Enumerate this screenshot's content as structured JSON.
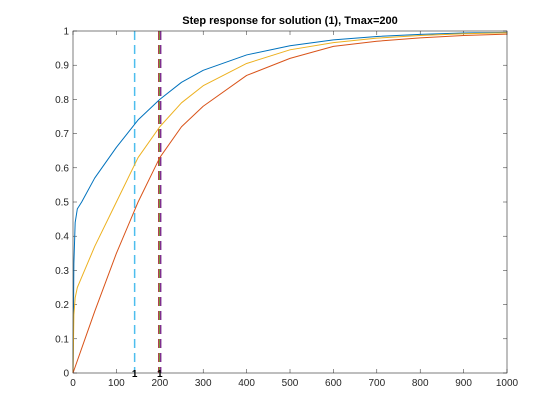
{
  "chart_data": {
    "type": "line",
    "title": "Step response for solution (1), Tmax=200",
    "xlabel": "",
    "ylabel": "",
    "xlim": [
      0,
      1000
    ],
    "ylim": [
      0,
      1
    ],
    "grid": false,
    "legend": "none",
    "xticks": [
      0,
      100,
      200,
      300,
      400,
      500,
      600,
      700,
      800,
      900,
      1000
    ],
    "yticks": [
      0,
      0.1,
      0.2,
      0.3,
      0.4,
      0.5,
      0.6,
      0.7,
      0.8,
      0.9,
      1
    ],
    "series": [
      {
        "color": "#0072BD",
        "x": [
          0,
          2,
          5,
          10,
          20,
          50,
          100,
          150,
          200,
          250,
          300,
          400,
          500,
          600,
          700,
          800,
          900,
          1000
        ],
        "y": [
          0,
          0.32,
          0.44,
          0.48,
          0.5,
          0.57,
          0.66,
          0.74,
          0.8,
          0.85,
          0.885,
          0.93,
          0.957,
          0.974,
          0.984,
          0.99,
          0.994,
          0.996
        ]
      },
      {
        "color": "#EDB120",
        "x": [
          0,
          2,
          5,
          10,
          20,
          50,
          100,
          150,
          200,
          250,
          300,
          400,
          500,
          600,
          700,
          800,
          900,
          1000
        ],
        "y": [
          0,
          0.17,
          0.22,
          0.25,
          0.28,
          0.37,
          0.5,
          0.63,
          0.72,
          0.79,
          0.84,
          0.905,
          0.945,
          0.966,
          0.979,
          0.987,
          0.992,
          0.995
        ]
      },
      {
        "color": "#D95319",
        "x": [
          0,
          25,
          50,
          100,
          150,
          200,
          250,
          300,
          400,
          500,
          600,
          700,
          800,
          900,
          1000
        ],
        "y": [
          0,
          0.09,
          0.18,
          0.35,
          0.5,
          0.63,
          0.72,
          0.78,
          0.87,
          0.92,
          0.955,
          0.97,
          0.98,
          0.987,
          0.991
        ]
      }
    ],
    "vlines": [
      {
        "x": 142,
        "color": "#4DBEEE"
      },
      {
        "x": 198,
        "color": "#A2142F"
      },
      {
        "x": 200,
        "color": "#77AC30"
      },
      {
        "x": 202,
        "color": "#7E2F8E"
      }
    ],
    "annotations": [
      {
        "text": "1",
        "x": 142,
        "y": 0
      },
      {
        "text": "1",
        "x": 200,
        "y": 0
      }
    ]
  }
}
